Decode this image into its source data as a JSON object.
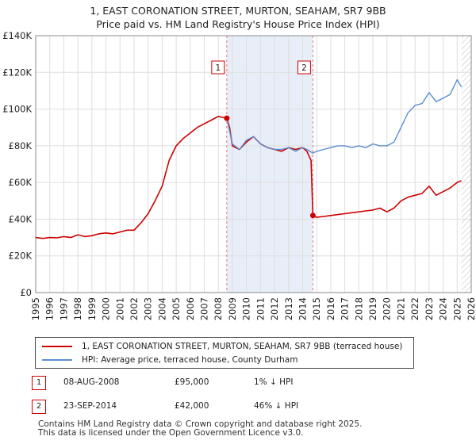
{
  "title_line1": "1, EAST CORONATION STREET, MURTON, SEAHAM, SR7 9BB",
  "title_line2": "Price paid vs. HM Land Registry's House Price Index (HPI)",
  "chart_data": {
    "type": "line",
    "title": "Price paid vs. HM Land Registry's House Price Index (HPI)",
    "xlabel": "",
    "ylabel": "",
    "xlim": [
      1995,
      2026
    ],
    "ylim": [
      0,
      140000
    ],
    "x_ticks": [
      "1995",
      "1996",
      "1997",
      "1998",
      "1999",
      "2000",
      "2001",
      "2002",
      "2003",
      "2004",
      "2005",
      "2006",
      "2007",
      "2008",
      "2009",
      "2010",
      "2011",
      "2012",
      "2013",
      "2014",
      "2015",
      "2016",
      "2017",
      "2018",
      "2019",
      "2020",
      "2021",
      "2022",
      "2023",
      "2024",
      "2025",
      "2026"
    ],
    "y_ticks": [
      "£0",
      "£20K",
      "£40K",
      "£60K",
      "£80K",
      "£100K",
      "£120K",
      "£140K"
    ],
    "series": [
      {
        "name": "1, EAST CORONATION STREET, MURTON, SEAHAM, SR7 9BB (terraced house)",
        "color": "#cc0000",
        "x": [
          1995.0,
          1995.5,
          1996.0,
          1996.5,
          1997.0,
          1997.5,
          1998.0,
          1998.5,
          1999.0,
          1999.5,
          2000.0,
          2000.5,
          2001.0,
          2001.5,
          2002.0,
          2002.5,
          2003.0,
          2003.5,
          2004.0,
          2004.5,
          2005.0,
          2005.5,
          2006.0,
          2006.5,
          2007.0,
          2007.5,
          2008.0,
          2008.3,
          2008.6,
          2008.8,
          2009.0,
          2009.5,
          2010.0,
          2010.5,
          2011.0,
          2011.5,
          2012.0,
          2012.5,
          2013.0,
          2013.5,
          2014.0,
          2014.3,
          2014.6,
          2014.73,
          2015.0,
          2015.5,
          2016.0,
          2016.5,
          2017.0,
          2017.5,
          2018.0,
          2018.5,
          2019.0,
          2019.5,
          2020.0,
          2020.5,
          2021.0,
          2021.5,
          2022.0,
          2022.5,
          2023.0,
          2023.5,
          2024.0,
          2024.5,
          2025.0,
          2025.3
        ],
        "values": [
          30000,
          29500,
          30000,
          29800,
          30500,
          30000,
          31500,
          30500,
          31000,
          32000,
          32500,
          32000,
          33000,
          34000,
          34000,
          38000,
          43000,
          50000,
          58000,
          72000,
          80000,
          84000,
          87000,
          90000,
          92000,
          94000,
          96000,
          95500,
          95000,
          90000,
          80000,
          78000,
          82000,
          85000,
          81000,
          79000,
          78000,
          77000,
          79000,
          78000,
          79000,
          77000,
          72000,
          42000,
          41000,
          41500,
          42000,
          42500,
          43000,
          43500,
          44000,
          44500,
          45000,
          46000,
          44000,
          46000,
          50000,
          52000,
          53000,
          54000,
          58000,
          53000,
          55000,
          57000,
          60000,
          61000
        ]
      },
      {
        "name": "HPI: Average price, terraced house, County Durham",
        "color": "#5b8fd1",
        "x": [
          2008.6,
          2009.0,
          2009.5,
          2010.0,
          2010.5,
          2011.0,
          2011.5,
          2012.0,
          2012.5,
          2013.0,
          2013.5,
          2014.0,
          2014.3,
          2014.73,
          2015.0,
          2015.5,
          2016.0,
          2016.5,
          2017.0,
          2017.5,
          2018.0,
          2018.5,
          2019.0,
          2019.5,
          2020.0,
          2020.5,
          2021.0,
          2021.5,
          2022.0,
          2022.5,
          2023.0,
          2023.5,
          2024.0,
          2024.5,
          2025.0,
          2025.3
        ],
        "values": [
          95000,
          81000,
          78000,
          83000,
          85000,
          81000,
          79000,
          78000,
          78000,
          79000,
          77000,
          79000,
          78000,
          76000,
          77000,
          78000,
          79000,
          80000,
          80000,
          79000,
          80000,
          79000,
          81000,
          80000,
          80000,
          82000,
          90000,
          98000,
          102000,
          103000,
          109000,
          104000,
          106000,
          108000,
          116000,
          112000
        ]
      }
    ],
    "annotations": [
      {
        "label": "1",
        "x": 2008.6,
        "y": 95000
      },
      {
        "label": "2",
        "x": 2014.73,
        "y": 42000
      }
    ],
    "shaded_regions": [
      [
        2008.6,
        2014.73
      ]
    ],
    "projection_from": 2025.3,
    "grid": true
  },
  "legend": {
    "items": [
      {
        "label": "1, EAST CORONATION STREET, MURTON, SEAHAM, SR7 9BB (terraced house)",
        "color": "#cc0000"
      },
      {
        "label": "HPI: Average price, terraced house, County Durham",
        "color": "#5b8fd1"
      }
    ]
  },
  "transactions": [
    {
      "num": "1",
      "date": "08-AUG-2008",
      "price": "£95,000",
      "hpi": "1% ↓ HPI"
    },
    {
      "num": "2",
      "date": "23-SEP-2014",
      "price": "£42,000",
      "hpi": "46% ↓ HPI"
    }
  ],
  "footer_line1": "Contains HM Land Registry data © Crown copyright and database right 2025.",
  "footer_line2": "This data is licensed under the Open Government Licence v3.0."
}
